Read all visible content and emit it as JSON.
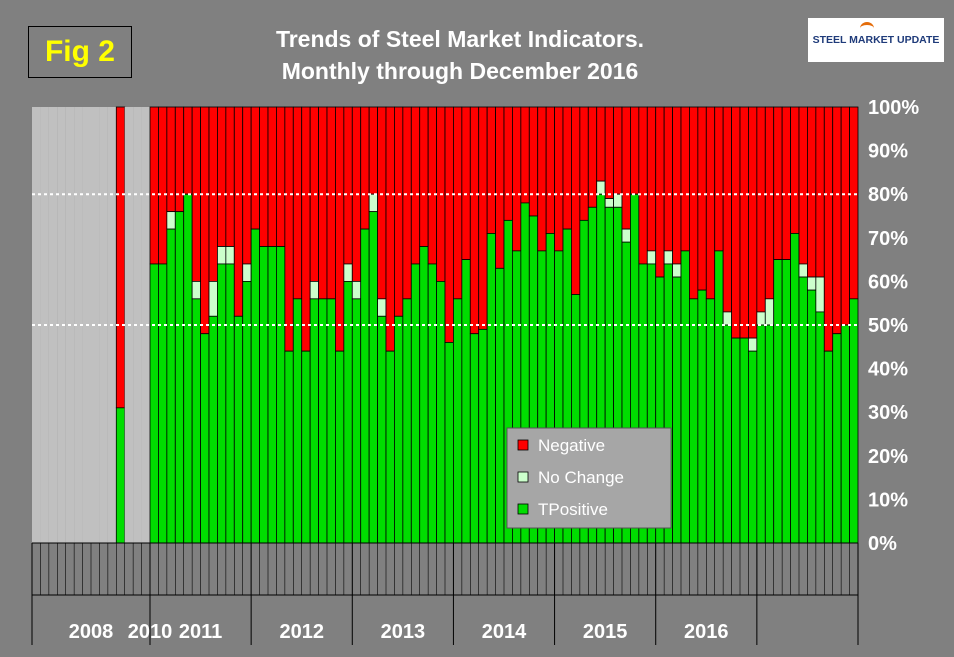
{
  "fig_label": "Fig 2",
  "title_line1": "Trends of Steel Market Indicators.",
  "title_line2": "Monthly through  December 2016",
  "logo_text": "STEEL MARKET UPDATE",
  "chart_data": {
    "type": "bar",
    "stacking": "100% stacked",
    "ylim": [
      0,
      100
    ],
    "yticks": [
      "0%",
      "10%",
      "20%",
      "30%",
      "40%",
      "50%",
      "60%",
      "70%",
      "80%",
      "90%",
      "100%"
    ],
    "reference_lines": [
      50,
      80
    ],
    "grid": false,
    "legend_position": "bottom-right",
    "legend": [
      "Negative",
      "No Change",
      "TPositive"
    ],
    "colors": {
      "Negative": "#ff0000",
      "No Change": "#ccffcc",
      "TPositive": "#00dd00",
      "gap": "#c0c0c0",
      "background": "#808080"
    },
    "year_labels": [
      "2008",
      "2010",
      "2011",
      "2012",
      "2013",
      "2014",
      "2015",
      "2016"
    ],
    "months": [
      {
        "year": "2008",
        "values": [
          null,
          null,
          null,
          null,
          null,
          null,
          null,
          null,
          null,
          null
        ]
      },
      {
        "year": "2008",
        "values": [
          31,
          0,
          69
        ]
      },
      {
        "year": "2008",
        "values": [
          null,
          null,
          null,
          null,
          null,
          null,
          null,
          null,
          null,
          null
        ]
      },
      {
        "year": "2010",
        "values": [
          null
        ]
      }
    ],
    "series": [
      {
        "name": "TPositive"
      },
      {
        "name": "No Change"
      },
      {
        "name": "Negative"
      }
    ],
    "gap_months_2008_start": 10,
    "gap_months_2008_end": 4,
    "gap_month_jan_2010": 0,
    "data_2008_nov": {
      "positive": 31,
      "no_change": 0,
      "negative": 69
    },
    "monthly_2010_2016": {
      "start": "2010-01",
      "positive": [
        64,
        64,
        72,
        76,
        80,
        56,
        48,
        52,
        64,
        64,
        52,
        60,
        72,
        68,
        68,
        68,
        44,
        56,
        44,
        56,
        56,
        56,
        44,
        60,
        56,
        72,
        76,
        52,
        44,
        52,
        56,
        64,
        68,
        64,
        60,
        46,
        56,
        65,
        48,
        49,
        71,
        63,
        74,
        67,
        78,
        75,
        67,
        71,
        67,
        72,
        57,
        74,
        77,
        80,
        77,
        77,
        69,
        80,
        64,
        64,
        61,
        64,
        61,
        67,
        56,
        58,
        56,
        67,
        50,
        47,
        47,
        44,
        50,
        50,
        65,
        65,
        71,
        61,
        58,
        53,
        44,
        48,
        50,
        56
      ],
      "no_change": [
        0,
        0,
        4,
        0,
        0,
        4,
        0,
        8,
        4,
        4,
        0,
        4,
        0,
        0,
        0,
        0,
        0,
        0,
        0,
        4,
        0,
        0,
        0,
        4,
        4,
        0,
        4,
        4,
        0,
        0,
        0,
        0,
        0,
        0,
        0,
        0,
        0,
        0,
        0,
        0,
        0,
        0,
        0,
        0,
        0,
        0,
        0,
        0,
        0,
        0,
        0,
        0,
        0,
        3,
        2,
        3,
        3,
        0,
        0,
        3,
        0,
        3,
        3,
        0,
        0,
        0,
        0,
        0,
        3,
        0,
        0,
        3,
        3,
        6,
        0,
        0,
        0,
        3,
        3,
        8,
        0,
        0,
        0,
        0
      ]
    }
  }
}
